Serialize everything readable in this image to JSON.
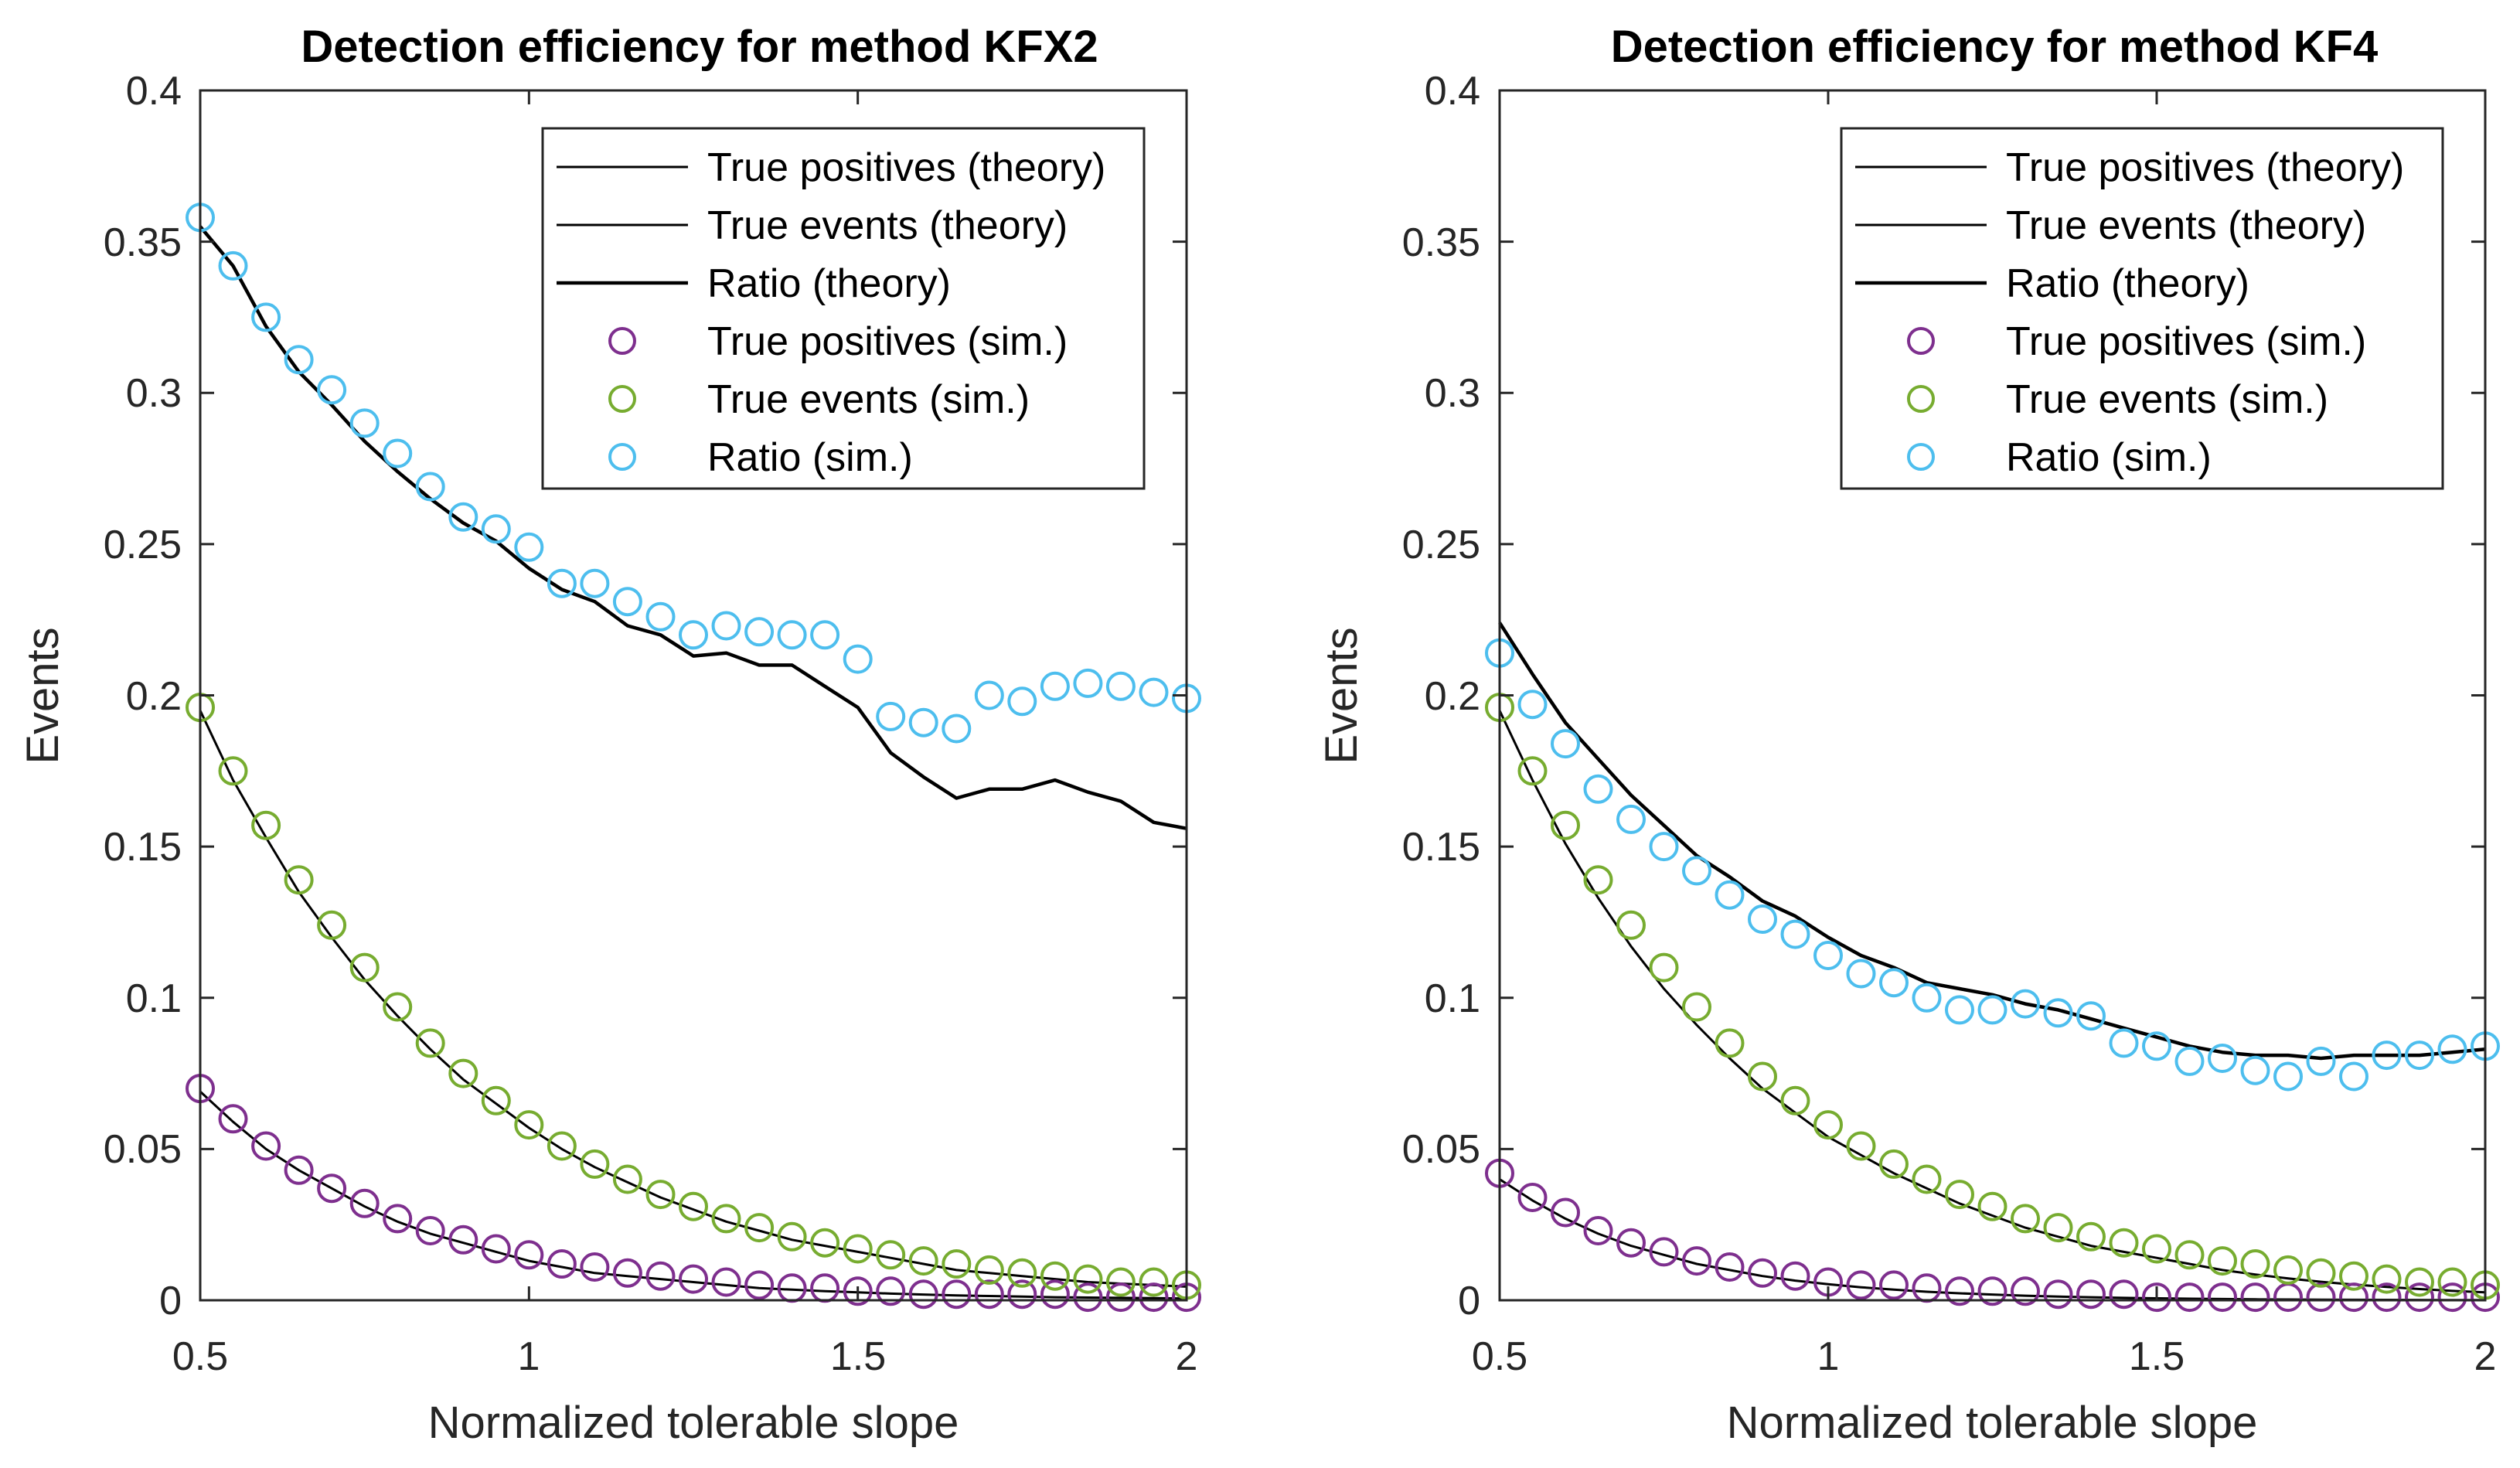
{
  "figure": {
    "ylabel": "Events",
    "xlabel": "Normalized tolerable slope"
  },
  "legend": {
    "entries": [
      "True positives (theory)",
      "True events (theory)",
      "Ratio (theory)",
      "True positives (sim.)",
      "True events (sim.)",
      "Ratio (sim.)"
    ]
  },
  "colors": {
    "theory": "#000000",
    "tp_sim": "#7E2F8E",
    "te_sim": "#77AC30",
    "ratio_sim": "#4DBEEE"
  },
  "xticks": [
    "0.5",
    "1",
    "1.5",
    "2"
  ],
  "yticks": [
    "0",
    "0.05",
    "0.1",
    "0.15",
    "0.2",
    "0.25",
    "0.3",
    "0.35",
    "0.4"
  ],
  "chart_data": [
    {
      "type": "line+scatter",
      "title": "Detection efficiency for method KFX2",
      "xlabel": "Normalized tolerable slope",
      "ylabel": "Events",
      "xlim": [
        0.5,
        2
      ],
      "ylim": [
        0,
        0.4
      ],
      "x": [
        0.5,
        0.55,
        0.6,
        0.65,
        0.7,
        0.75,
        0.8,
        0.85,
        0.9,
        0.95,
        1.0,
        1.05,
        1.1,
        1.15,
        1.2,
        1.25,
        1.3,
        1.35,
        1.4,
        1.45,
        1.5,
        1.55,
        1.6,
        1.65,
        1.7,
        1.75,
        1.8,
        1.85,
        1.9,
        1.95,
        2.0
      ],
      "series": [
        {
          "name": "True positives (theory)",
          "kind": "line",
          "values": [
            0.069,
            0.059,
            0.05,
            0.043,
            0.037,
            0.031,
            0.026,
            0.022,
            0.019,
            0.016,
            0.013,
            0.011,
            0.009,
            0.008,
            0.007,
            0.006,
            0.005,
            0.004,
            0.0035,
            0.003,
            0.0026,
            0.0022,
            0.0019,
            0.0016,
            0.0014,
            0.0012,
            0.001,
            0.0009,
            0.0008,
            0.0007,
            0.0006
          ]
        },
        {
          "name": "True events (theory)",
          "kind": "line",
          "values": [
            0.195,
            0.172,
            0.153,
            0.135,
            0.12,
            0.106,
            0.094,
            0.083,
            0.073,
            0.065,
            0.057,
            0.05,
            0.044,
            0.039,
            0.034,
            0.03,
            0.026,
            0.023,
            0.02,
            0.018,
            0.016,
            0.014,
            0.012,
            0.01,
            0.009,
            0.008,
            0.007,
            0.006,
            0.0055,
            0.005,
            0.0045
          ]
        },
        {
          "name": "Ratio (theory)",
          "kind": "line",
          "values": [
            0.355,
            0.342,
            0.322,
            0.307,
            0.296,
            0.284,
            0.274,
            0.265,
            0.257,
            0.251,
            0.242,
            0.235,
            0.231,
            0.223,
            0.22,
            0.213,
            0.214,
            0.21,
            0.21,
            0.203,
            0.196,
            0.181,
            0.173,
            0.166,
            0.169,
            0.169,
            0.172,
            0.168,
            0.165,
            0.158,
            0.156
          ]
        },
        {
          "name": "True positives (sim.)",
          "kind": "scatter",
          "values": [
            0.07,
            0.06,
            0.051,
            0.043,
            0.037,
            0.032,
            0.027,
            0.023,
            0.02,
            0.017,
            0.015,
            0.012,
            0.011,
            0.009,
            0.008,
            0.007,
            0.006,
            0.005,
            0.004,
            0.004,
            0.003,
            0.003,
            0.002,
            0.002,
            0.002,
            0.002,
            0.002,
            0.001,
            0.001,
            0.001,
            0.001
          ]
        },
        {
          "name": "True events (sim.)",
          "kind": "scatter",
          "values": [
            0.196,
            0.175,
            0.157,
            0.139,
            0.124,
            0.11,
            0.097,
            0.085,
            0.075,
            0.066,
            0.058,
            0.051,
            0.045,
            0.04,
            0.035,
            0.031,
            0.027,
            0.024,
            0.021,
            0.019,
            0.017,
            0.015,
            0.013,
            0.012,
            0.01,
            0.009,
            0.008,
            0.007,
            0.006,
            0.006,
            0.005
          ]
        },
        {
          "name": "Ratio (sim.)",
          "kind": "scatter",
          "values": [
            0.358,
            0.342,
            0.325,
            0.311,
            0.301,
            0.29,
            0.28,
            0.269,
            0.259,
            0.255,
            0.249,
            0.237,
            0.237,
            0.231,
            0.226,
            0.22,
            0.223,
            0.221,
            0.22,
            0.22,
            0.212,
            0.193,
            0.191,
            0.189,
            0.2,
            0.198,
            0.203,
            0.204,
            0.203,
            0.201,
            0.199
          ]
        }
      ]
    },
    {
      "type": "line+scatter",
      "title": "Detection efficiency for method KF4",
      "xlabel": "Normalized tolerable slope",
      "ylabel": "Events",
      "xlim": [
        0.5,
        2
      ],
      "ylim": [
        0,
        0.4
      ],
      "x": [
        0.5,
        0.55,
        0.6,
        0.65,
        0.7,
        0.75,
        0.8,
        0.85,
        0.9,
        0.95,
        1.0,
        1.05,
        1.1,
        1.15,
        1.2,
        1.25,
        1.3,
        1.35,
        1.4,
        1.45,
        1.5,
        1.55,
        1.6,
        1.65,
        1.7,
        1.75,
        1.8,
        1.85,
        1.9,
        1.95,
        2.0
      ],
      "series": [
        {
          "name": "True positives (theory)",
          "kind": "line",
          "values": [
            0.04,
            0.033,
            0.027,
            0.022,
            0.018,
            0.015,
            0.012,
            0.01,
            0.008,
            0.0065,
            0.0053,
            0.0043,
            0.0035,
            0.0028,
            0.0023,
            0.0019,
            0.0015,
            0.0012,
            0.001,
            0.0008,
            0.00065,
            0.0005,
            0.0004,
            0.0003,
            0.00025,
            0.0002,
            0.00016,
            0.00013,
            0.0001,
            8e-05,
            6e-05
          ]
        },
        {
          "name": "True events (theory)",
          "kind": "line",
          "values": [
            0.195,
            0.172,
            0.151,
            0.133,
            0.117,
            0.103,
            0.091,
            0.08,
            0.07,
            0.062,
            0.054,
            0.048,
            0.042,
            0.037,
            0.032,
            0.028,
            0.024,
            0.021,
            0.018,
            0.016,
            0.014,
            0.012,
            0.01,
            0.0085,
            0.0072,
            0.0061,
            0.0052,
            0.0044,
            0.0037,
            0.0031,
            0.0026
          ]
        },
        {
          "name": "Ratio (theory)",
          "kind": "line",
          "values": [
            0.224,
            0.207,
            0.191,
            0.179,
            0.167,
            0.157,
            0.147,
            0.14,
            0.132,
            0.127,
            0.12,
            0.114,
            0.11,
            0.105,
            0.103,
            0.101,
            0.098,
            0.096,
            0.093,
            0.09,
            0.087,
            0.084,
            0.082,
            0.081,
            0.081,
            0.08,
            0.081,
            0.081,
            0.081,
            0.082,
            0.083
          ]
        },
        {
          "name": "True positives (sim.)",
          "kind": "scatter",
          "values": [
            0.042,
            0.034,
            0.029,
            0.023,
            0.019,
            0.016,
            0.013,
            0.011,
            0.009,
            0.008,
            0.006,
            0.005,
            0.005,
            0.004,
            0.003,
            0.003,
            0.003,
            0.002,
            0.002,
            0.002,
            0.001,
            0.001,
            0.001,
            0.001,
            0.001,
            0.001,
            0.001,
            0.001,
            0.001,
            0.001,
            0.001
          ]
        },
        {
          "name": "True events (sim.)",
          "kind": "scatter",
          "values": [
            0.196,
            0.175,
            0.157,
            0.139,
            0.124,
            0.11,
            0.097,
            0.085,
            0.074,
            0.066,
            0.058,
            0.051,
            0.045,
            0.04,
            0.035,
            0.031,
            0.027,
            0.024,
            0.021,
            0.019,
            0.017,
            0.015,
            0.013,
            0.012,
            0.01,
            0.009,
            0.008,
            0.007,
            0.006,
            0.006,
            0.005
          ]
        },
        {
          "name": "Ratio (sim.)",
          "kind": "scatter",
          "values": [
            0.214,
            0.197,
            0.184,
            0.169,
            0.159,
            0.15,
            0.142,
            0.134,
            0.126,
            0.121,
            0.114,
            0.108,
            0.105,
            0.1,
            0.096,
            0.096,
            0.098,
            0.095,
            0.094,
            0.085,
            0.084,
            0.079,
            0.08,
            0.076,
            0.074,
            0.079,
            0.074,
            0.081,
            0.081,
            0.083,
            0.084
          ]
        }
      ]
    }
  ]
}
